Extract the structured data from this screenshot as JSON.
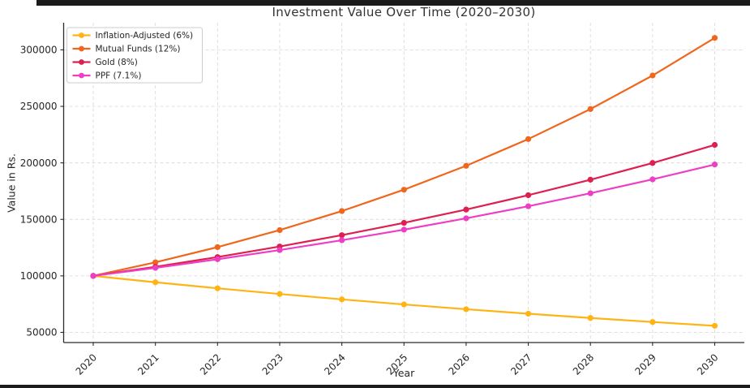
{
  "frame": {
    "background": "#ffffff",
    "border_color": "#1b1b1b"
  },
  "colors": {
    "grid": "#dcdcdc",
    "axis": "#2b2b2b",
    "tick_text": "#262626",
    "title_text": "#333333",
    "legend_border": "#cccccc",
    "legend_bg": "#ffffff"
  },
  "chart_data": {
    "type": "line",
    "title": "Investment Value Over Time (2020–2030)",
    "xlabel": "Year",
    "ylabel": "Value in Rs.",
    "x": [
      2020,
      2021,
      2022,
      2023,
      2024,
      2025,
      2026,
      2027,
      2028,
      2029,
      2030
    ],
    "y_ticks": [
      50000,
      100000,
      150000,
      200000,
      250000,
      300000
    ],
    "ylim": [
      41000,
      324000
    ],
    "grid": true,
    "grid_style": "dashed",
    "legend_position": "upper left",
    "series": [
      {
        "name": "Inflation-Adjusted (6%)",
        "color": "#FFB414",
        "values": [
          100000,
          94340,
          89000,
          83962,
          79209,
          74726,
          70496,
          66506,
          62741,
          59190,
          55839
        ]
      },
      {
        "name": "Mutual Funds (12%)",
        "color": "#F0661C",
        "values": [
          100000,
          112000,
          125440,
          140493,
          157352,
          176234,
          197382,
          221068,
          247596,
          277308,
          310585
        ]
      },
      {
        "name": "Gold (8%)",
        "color": "#DC2050",
        "values": [
          100000,
          108000,
          116640,
          125971,
          136049,
          146933,
          158687,
          171382,
          185093,
          199900,
          215892
        ]
      },
      {
        "name": "PPF (7.1%)",
        "color": "#EE3FC4",
        "values": [
          100000,
          107100,
          114704,
          122848,
          131570,
          140912,
          150916,
          161631,
          173107,
          185398,
          198561
        ]
      }
    ]
  }
}
